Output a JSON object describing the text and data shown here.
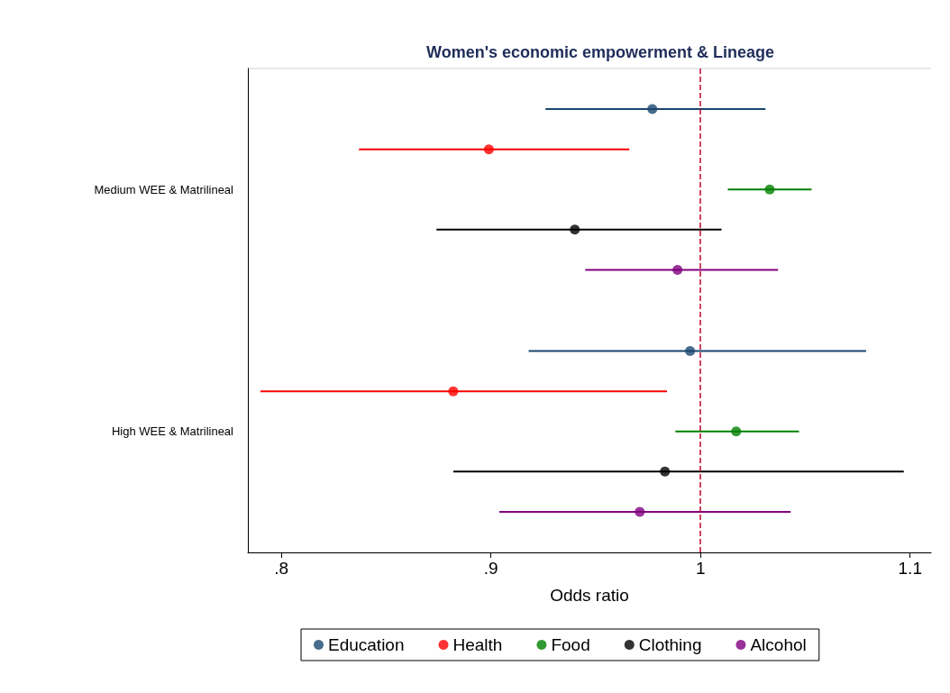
{
  "chart_data": {
    "type": "scatter",
    "orientation": "horizontal",
    "title": "Women's economic empowerment & Lineage",
    "xlabel": "Odds ratio",
    "categories": [
      "Medium WEE & Matrilineal",
      "High WEE & Matrilineal"
    ],
    "series": [
      {
        "name": "Education",
        "color": "#1a476f",
        "values": [
          0.977,
          0.995
        ],
        "errors": [
          [
            0.926,
            1.031
          ],
          [
            0.918,
            1.079
          ]
        ]
      },
      {
        "name": "Health",
        "color": "#ff0000",
        "values": [
          0.899,
          0.882
        ],
        "errors": [
          [
            0.837,
            0.966
          ],
          [
            0.79,
            0.984
          ]
        ]
      },
      {
        "name": "Food",
        "color": "#008000",
        "values": [
          1.033,
          1.017
        ],
        "errors": [
          [
            1.013,
            1.053
          ],
          [
            0.988,
            1.047
          ]
        ]
      },
      {
        "name": "Clothing",
        "color": "#000000",
        "values": [
          0.94,
          0.983
        ],
        "errors": [
          [
            0.874,
            1.01
          ],
          [
            0.882,
            1.097
          ]
        ]
      },
      {
        "name": "Alcohol",
        "color": "#800080",
        "values": [
          0.989,
          0.971
        ],
        "errors": [
          [
            0.945,
            1.037
          ],
          [
            0.904,
            1.043
          ]
        ]
      }
    ],
    "xlim": [
      0.784,
      1.11
    ],
    "xticks": [
      {
        "value": 0.8,
        "label": ".8"
      },
      {
        "value": 0.9,
        "label": ".9"
      },
      1,
      1.1
    ],
    "ref_lines": [
      {
        "axis": "x",
        "value": 1,
        "color": "#c10534",
        "line_style": "dashed"
      }
    ],
    "grid": "y",
    "legend": "bottom",
    "marker": "circle"
  }
}
